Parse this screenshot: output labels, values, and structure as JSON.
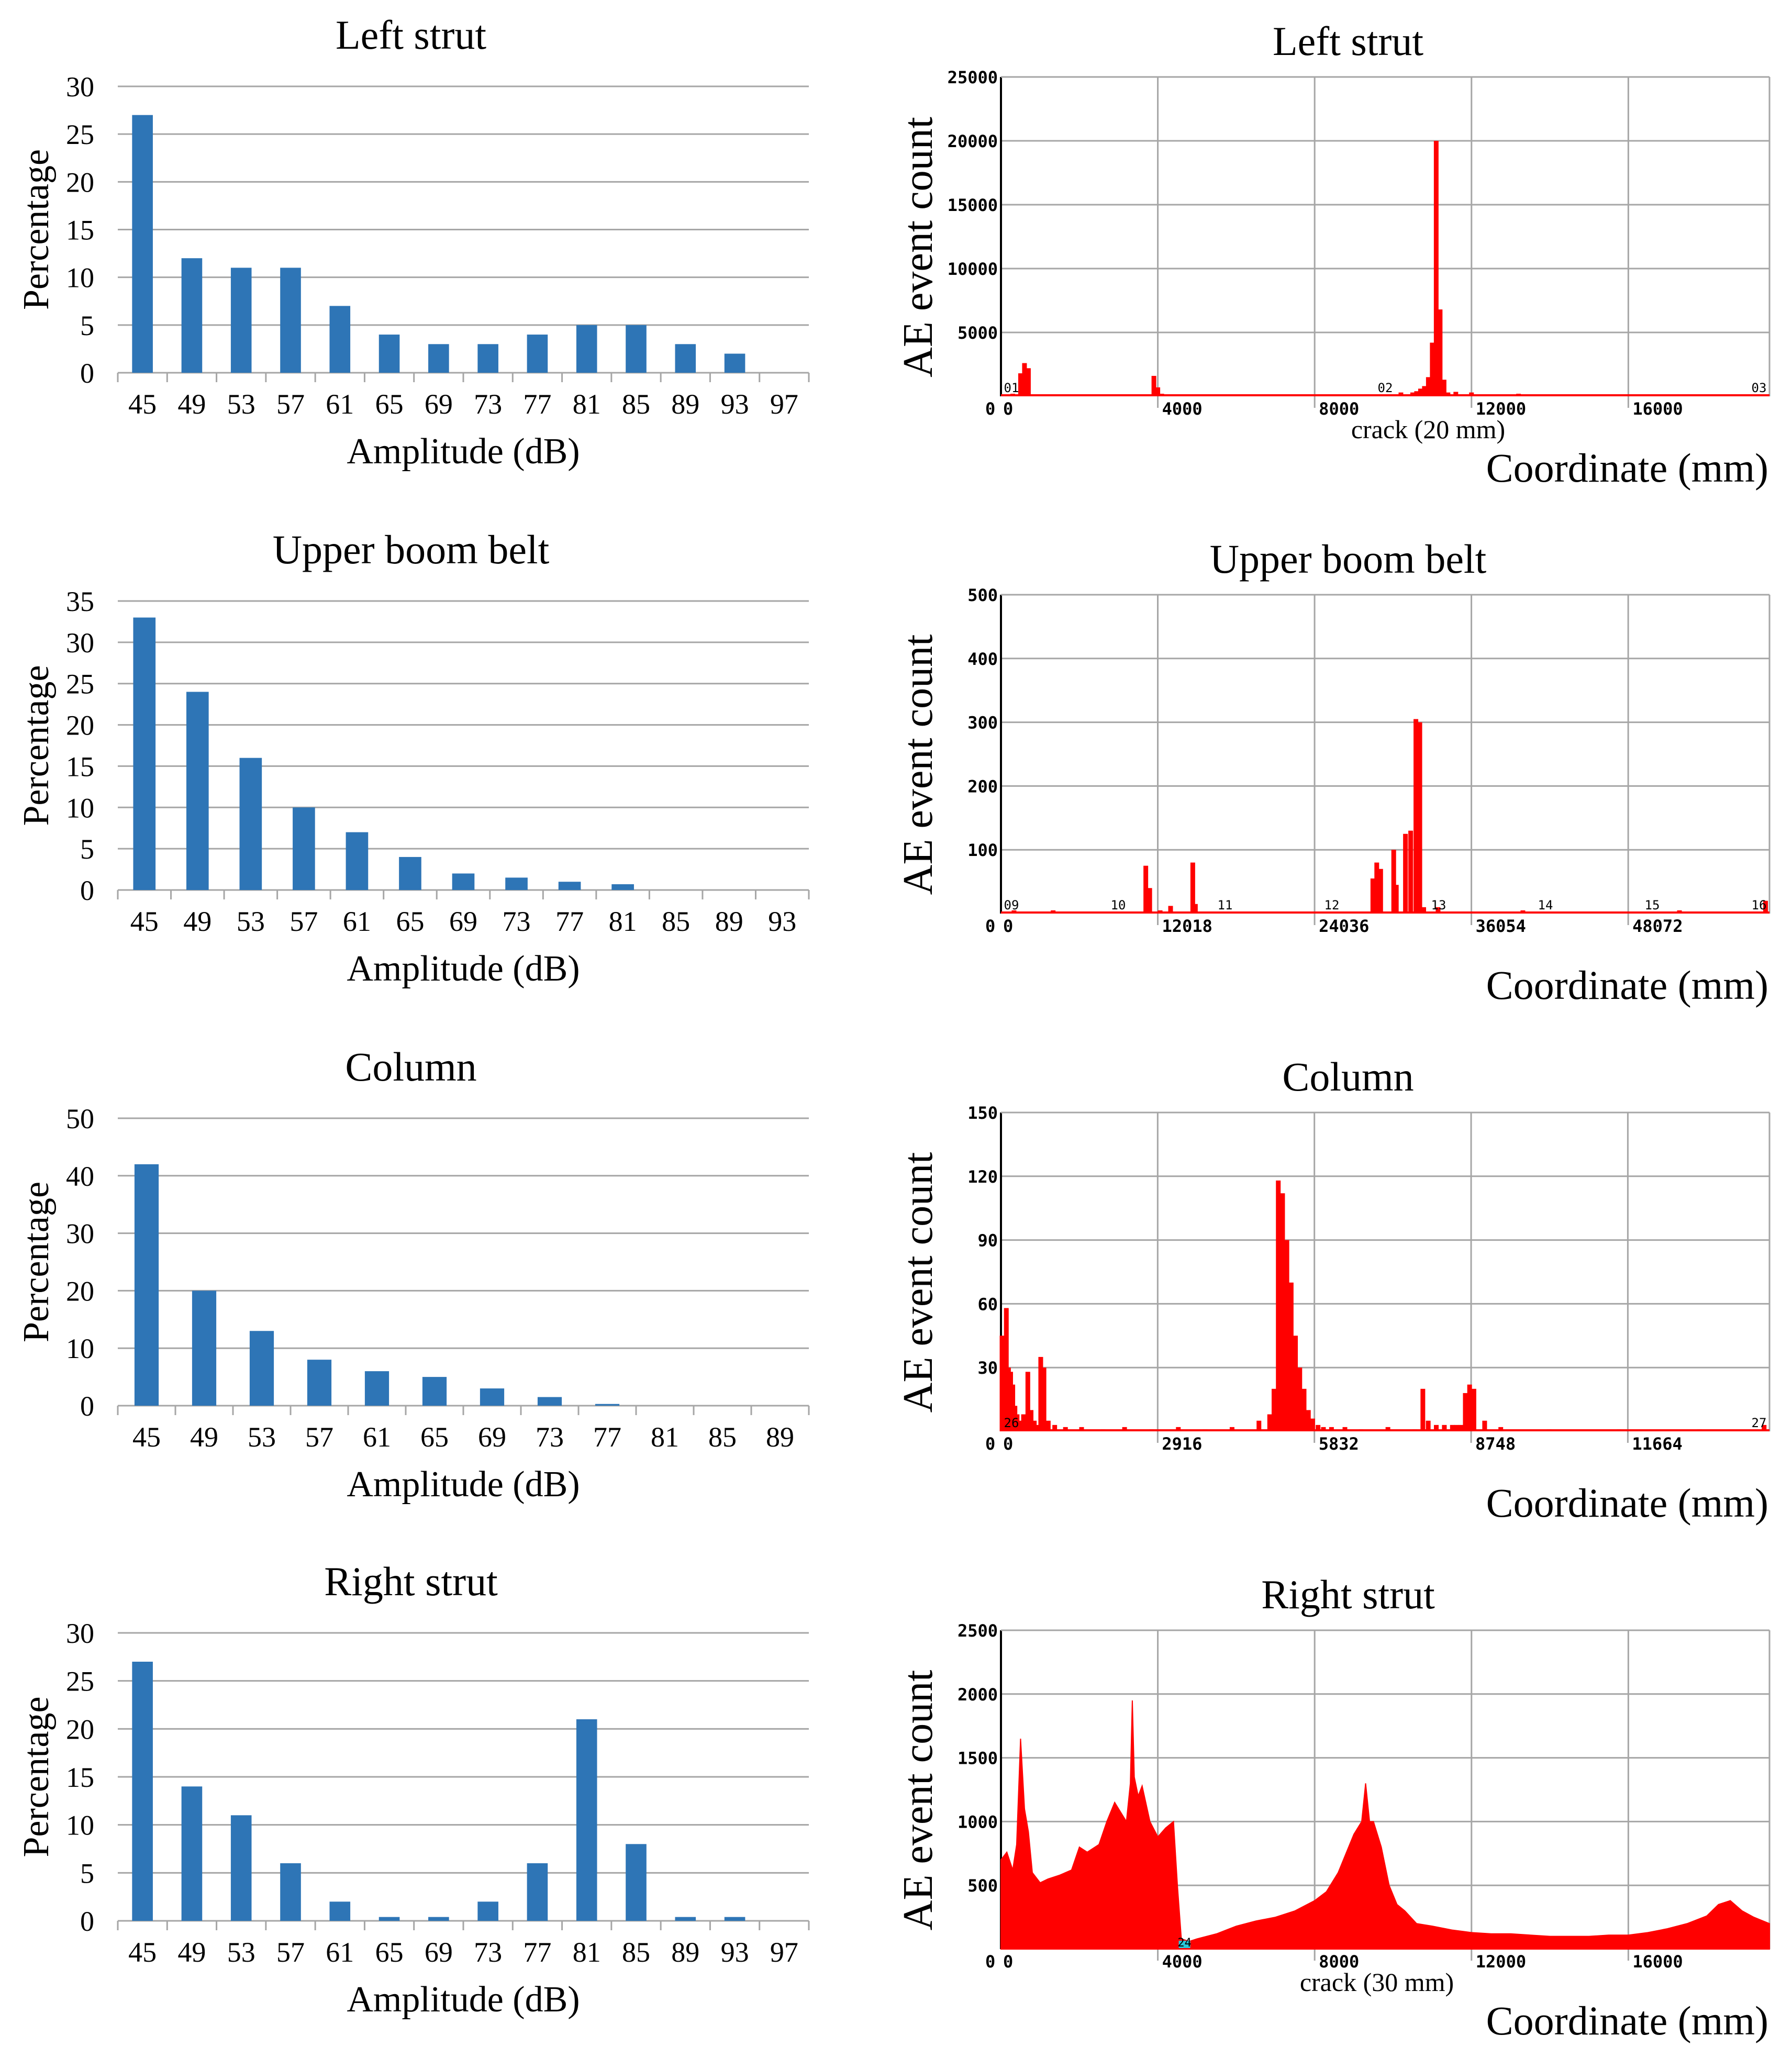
{
  "colors": {
    "bar_blue": "#2E75B6",
    "event_red": "#FF0000",
    "sensor_cyan": "#29C6D8",
    "grid_gray": "#A6A6A6",
    "axis_black": "#000000"
  },
  "chart_data": [
    {
      "type": "bar",
      "title": "Left strut",
      "xlabel": "Amplitude (dB)",
      "ylabel": "Percentage",
      "categories": [
        "45",
        "49",
        "53",
        "57",
        "61",
        "65",
        "69",
        "73",
        "77",
        "81",
        "85",
        "89",
        "93",
        "97"
      ],
      "values": [
        27,
        12,
        11,
        11,
        7,
        4,
        3,
        3,
        4,
        5,
        5,
        3,
        2,
        0
      ],
      "ylim": [
        0,
        30
      ],
      "yticks": [
        "0",
        "5",
        "10",
        "15",
        "20",
        "25",
        "30"
      ],
      "grid": true
    },
    {
      "type": "bar",
      "title": "Left strut",
      "xlabel": "Coordinate (mm)",
      "ylabel": "AE event count",
      "xlim": [
        0,
        19600
      ],
      "ylim": [
        0,
        25000
      ],
      "xticks": [
        "0",
        "4000",
        "8000",
        "12000",
        "16000"
      ],
      "yticks": [
        "0",
        "5000",
        "10000",
        "15000",
        "20000",
        "25000"
      ],
      "sensors": [
        "01",
        "02",
        "03"
      ],
      "annotation": "crack (20 mm)",
      "x": [
        300,
        500,
        600,
        700,
        3800,
        3900,
        4000,
        4100,
        4200,
        4500,
        10200,
        10500,
        10600,
        10700,
        10800,
        10900,
        11000,
        11100,
        11200,
        11300,
        11400,
        11600,
        12000,
        13200,
        16500
      ],
      "values": [
        200,
        1800,
        2600,
        2200,
        150,
        1600,
        700,
        200,
        120,
        100,
        300,
        300,
        400,
        600,
        800,
        1500,
        4200,
        20000,
        6800,
        1300,
        300,
        350,
        300,
        200,
        150
      ],
      "grid": true
    },
    {
      "type": "bar",
      "title": "Upper boom belt",
      "xlabel": "Amplitude (dB)",
      "ylabel": "Percentage",
      "categories": [
        "45",
        "49",
        "53",
        "57",
        "61",
        "65",
        "69",
        "73",
        "77",
        "81",
        "85",
        "89",
        "93"
      ],
      "values": [
        33,
        24,
        16,
        10,
        7,
        4,
        2,
        1.5,
        1,
        0.7,
        0,
        0,
        0
      ],
      "ylim": [
        0,
        35
      ],
      "yticks": [
        "0",
        "5",
        "10",
        "15",
        "20",
        "25",
        "30",
        "35"
      ],
      "grid": true
    },
    {
      "type": "bar",
      "title": "Upper boom belt",
      "xlabel": "Coordinate (mm)",
      "ylabel": "AE event count",
      "xlim": [
        0,
        58900
      ],
      "ylim": [
        0,
        500
      ],
      "xticks": [
        "0",
        "12018",
        "24036",
        "36054",
        "48072"
      ],
      "yticks": [
        "0",
        "100",
        "200",
        "300",
        "400",
        "500"
      ],
      "sensors": [
        "09",
        "10",
        "11",
        "12",
        "13",
        "14",
        "15",
        "16"
      ],
      "x": [
        1000,
        4000,
        11100,
        11400,
        12200,
        13000,
        14700,
        14900,
        28500,
        28800,
        29100,
        30100,
        30300,
        31000,
        31400,
        31800,
        32100,
        32400,
        33500,
        40000,
        52000,
        58600
      ],
      "values": [
        5,
        5,
        75,
        40,
        5,
        12,
        80,
        15,
        55,
        80,
        70,
        100,
        45,
        125,
        130,
        305,
        300,
        10,
        10,
        5,
        5,
        20
      ],
      "grid": true
    },
    {
      "type": "bar",
      "title": "Column",
      "xlabel": "Amplitude (dB)",
      "ylabel": "Percentage",
      "categories": [
        "45",
        "49",
        "53",
        "57",
        "61",
        "65",
        "69",
        "73",
        "77",
        "81",
        "85",
        "89"
      ],
      "values": [
        42,
        20,
        13,
        8,
        6,
        5,
        3,
        1.5,
        0.3,
        0,
        0,
        0
      ],
      "ylim": [
        0,
        50
      ],
      "yticks": [
        "0",
        "10",
        "20",
        "30",
        "40",
        "50"
      ],
      "grid": true
    },
    {
      "type": "bar",
      "title": "Column",
      "xlabel": "Coordinate (mm)",
      "ylabel": "AE event count",
      "xlim": [
        0,
        14300
      ],
      "ylim": [
        0,
        150
      ],
      "xticks": [
        "0",
        "2916",
        "5832",
        "8748",
        "11664"
      ],
      "yticks": [
        "0",
        "30",
        "60",
        "90",
        "120",
        "150"
      ],
      "sensors": [
        "26",
        "27"
      ],
      "x": [
        20,
        60,
        100,
        140,
        180,
        220,
        260,
        300,
        340,
        380,
        420,
        460,
        500,
        560,
        620,
        680,
        740,
        800,
        880,
        1000,
        1200,
        1500,
        1900,
        2300,
        2800,
        3300,
        3800,
        4300,
        4800,
        5000,
        5080,
        5160,
        5240,
        5320,
        5400,
        5480,
        5560,
        5640,
        5720,
        5800,
        5900,
        6000,
        6150,
        6400,
        6700,
        7200,
        7700,
        7850,
        7950,
        8100,
        8250,
        8400,
        8480,
        8560,
        8640,
        8720,
        8800,
        9000,
        9300,
        10200,
        11500,
        13000,
        14200
      ],
      "values": [
        45,
        32,
        58,
        30,
        28,
        22,
        12,
        8,
        5,
        3,
        8,
        4,
        28,
        10,
        5,
        3,
        35,
        30,
        5,
        3,
        2,
        2,
        1,
        2,
        1,
        2,
        1,
        2,
        5,
        8,
        20,
        118,
        112,
        90,
        70,
        45,
        30,
        20,
        10,
        6,
        3,
        2,
        2,
        2,
        1,
        2,
        1,
        20,
        5,
        3,
        3,
        3,
        3,
        3,
        18,
        22,
        20,
        5,
        2,
        1,
        1,
        1,
        3
      ],
      "grid": true
    },
    {
      "type": "bar",
      "title": "Right strut",
      "xlabel": "Amplitude (dB)",
      "ylabel": "Percentage",
      "categories": [
        "45",
        "49",
        "53",
        "57",
        "61",
        "65",
        "69",
        "73",
        "77",
        "81",
        "85",
        "89",
        "93",
        "97"
      ],
      "values": [
        27,
        14,
        11,
        6,
        2,
        0.4,
        0.4,
        2,
        6,
        21,
        8,
        0.4,
        0.4,
        0
      ],
      "ylim": [
        0,
        30
      ],
      "yticks": [
        "0",
        "5",
        "10",
        "15",
        "20",
        "25",
        "30"
      ],
      "grid": true
    },
    {
      "type": "area",
      "title": "Right strut",
      "xlabel": "Coordinate (mm)",
      "ylabel": "AE event count",
      "xlim": [
        0,
        19600
      ],
      "ylim": [
        0,
        2500
      ],
      "xticks": [
        "0",
        "4000",
        "8000",
        "12000",
        "16000"
      ],
      "yticks": [
        "0",
        "500",
        "1000",
        "1500",
        "2000",
        "2500"
      ],
      "sensor_label": "24",
      "annotation": "crack (30 mm)",
      "x": [
        0,
        150,
        300,
        400,
        500,
        600,
        700,
        800,
        1000,
        1200,
        1500,
        1800,
        2000,
        2200,
        2500,
        2700,
        2900,
        3100,
        3200,
        3300,
        3350,
        3400,
        3500,
        3600,
        3800,
        4000,
        4200,
        4400,
        4500,
        4600,
        4800,
        5000,
        5500,
        6000,
        6500,
        7000,
        7500,
        8000,
        8300,
        8600,
        8800,
        9000,
        9200,
        9300,
        9400,
        9500,
        9700,
        9900,
        10100,
        10300,
        10600,
        11000,
        11500,
        12000,
        12500,
        13000,
        13500,
        14000,
        14500,
        15000,
        15500,
        16000,
        16500,
        17000,
        17500,
        18000,
        18300,
        18600,
        18900,
        19200,
        19600
      ],
      "values": [
        700,
        760,
        620,
        820,
        1650,
        1100,
        920,
        600,
        520,
        550,
        580,
        620,
        800,
        760,
        820,
        1000,
        1150,
        1050,
        1000,
        1300,
        1950,
        1350,
        1200,
        1280,
        1000,
        880,
        950,
        1000,
        500,
        80,
        60,
        80,
        120,
        180,
        220,
        250,
        300,
        380,
        450,
        600,
        750,
        900,
        1000,
        1300,
        1000,
        1000,
        800,
        500,
        350,
        300,
        200,
        180,
        150,
        130,
        120,
        120,
        110,
        100,
        100,
        100,
        110,
        110,
        130,
        160,
        200,
        260,
        350,
        380,
        300,
        250,
        200
      ],
      "grid": true
    }
  ]
}
